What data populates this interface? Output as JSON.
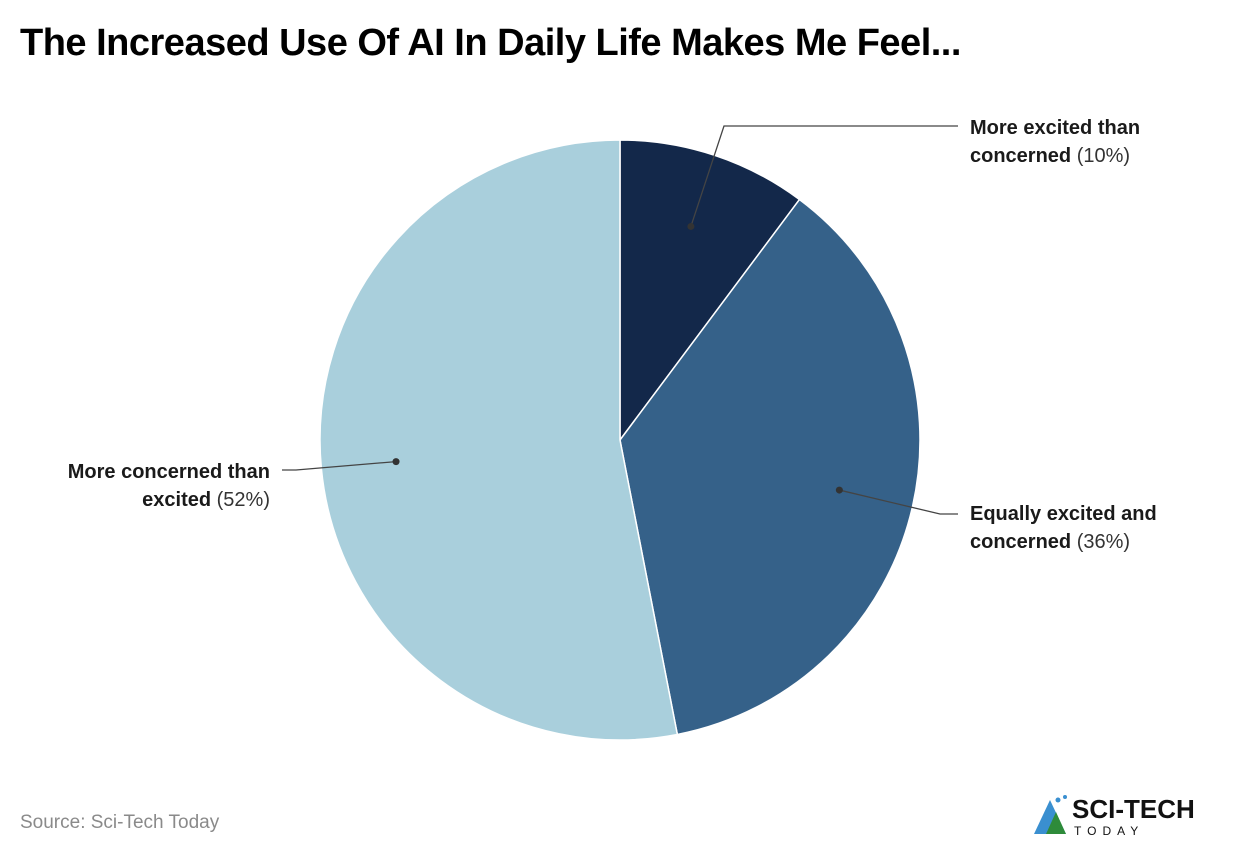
{
  "title": "The Increased Use Of AI In Daily Life Makes Me Feel...",
  "source": "Source: Sci-Tech Today",
  "logo": {
    "text": "SCI-TECH",
    "subtext": "TODAY"
  },
  "chart_data": {
    "type": "pie",
    "title": "The Increased Use Of AI In Daily Life Makes Me Feel...",
    "start": "top",
    "direction": "clockwise",
    "slices": [
      {
        "label_bold": "More excited than concerned",
        "pct_text": "(10%)",
        "value": 10,
        "color": "#13284a"
      },
      {
        "label_bold": "Equally excited and concerned",
        "pct_text": "(36%)",
        "value": 36,
        "color": "#356189"
      },
      {
        "label_bold": "More concerned than excited",
        "pct_text": "(52%)",
        "value": 52,
        "color": "#a9cfdc"
      }
    ]
  }
}
